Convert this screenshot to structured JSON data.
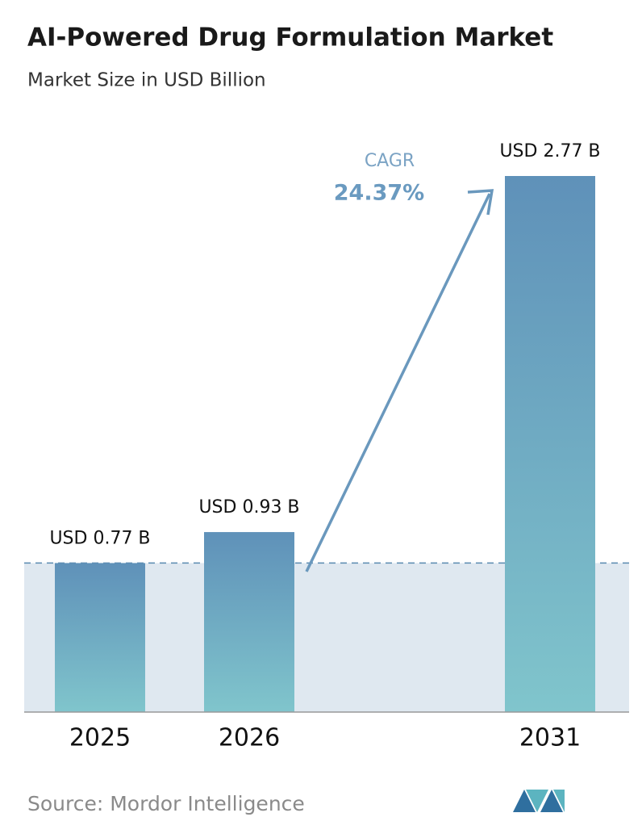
{
  "chart_data": {
    "type": "bar",
    "title": "AI-Powered Drug Formulation Market",
    "subtitle": "Market Size in USD Billion",
    "categories": [
      "2025",
      "2026",
      "2031"
    ],
    "values": [
      0.77,
      0.93,
      2.77
    ],
    "value_labels": [
      "USD 0.77 B",
      "USD 0.93 B",
      "USD 2.77 B"
    ],
    "annotations": [
      "CAGR",
      "24.37%"
    ],
    "source": "Source: Mordor Intelligence"
  }
}
